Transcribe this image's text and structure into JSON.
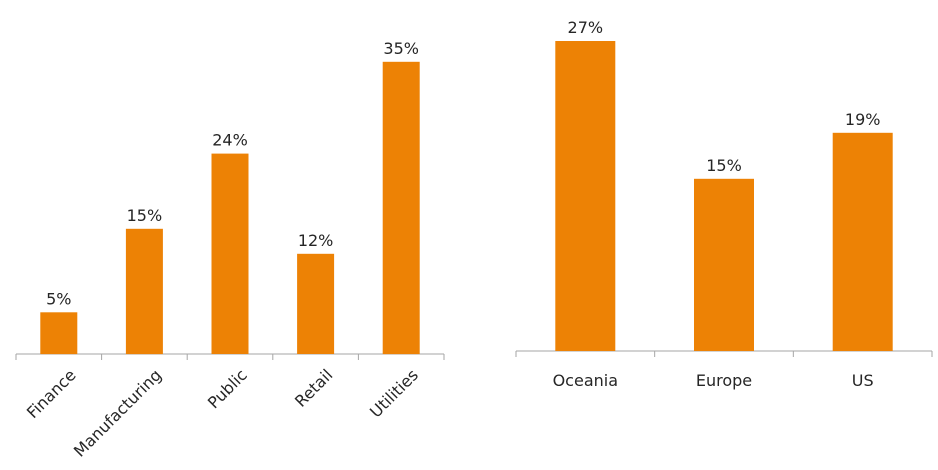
{
  "chart_data": [
    {
      "type": "bar",
      "categories": [
        "Finance",
        "Manufacturing",
        "Public",
        "Retail",
        "Utilities"
      ],
      "values": [
        5,
        15,
        24,
        12,
        35
      ],
      "value_labels": [
        "5%",
        "15%",
        "24%",
        "12%",
        "35%"
      ],
      "unit": "%",
      "ylim": [
        0,
        40
      ],
      "grid": false,
      "legend": "none",
      "tick_label_rotation": "-45deg",
      "bar_color": "#ed8205"
    },
    {
      "type": "bar",
      "categories": [
        "Oceania",
        "Europe",
        "US"
      ],
      "values": [
        27,
        15,
        19
      ],
      "value_labels": [
        "27%",
        "15%",
        "19%"
      ],
      "unit": "%",
      "ylim": [
        0,
        29
      ],
      "grid": false,
      "legend": "none",
      "tick_label_rotation": "0deg",
      "bar_color": "#ed8205"
    }
  ]
}
